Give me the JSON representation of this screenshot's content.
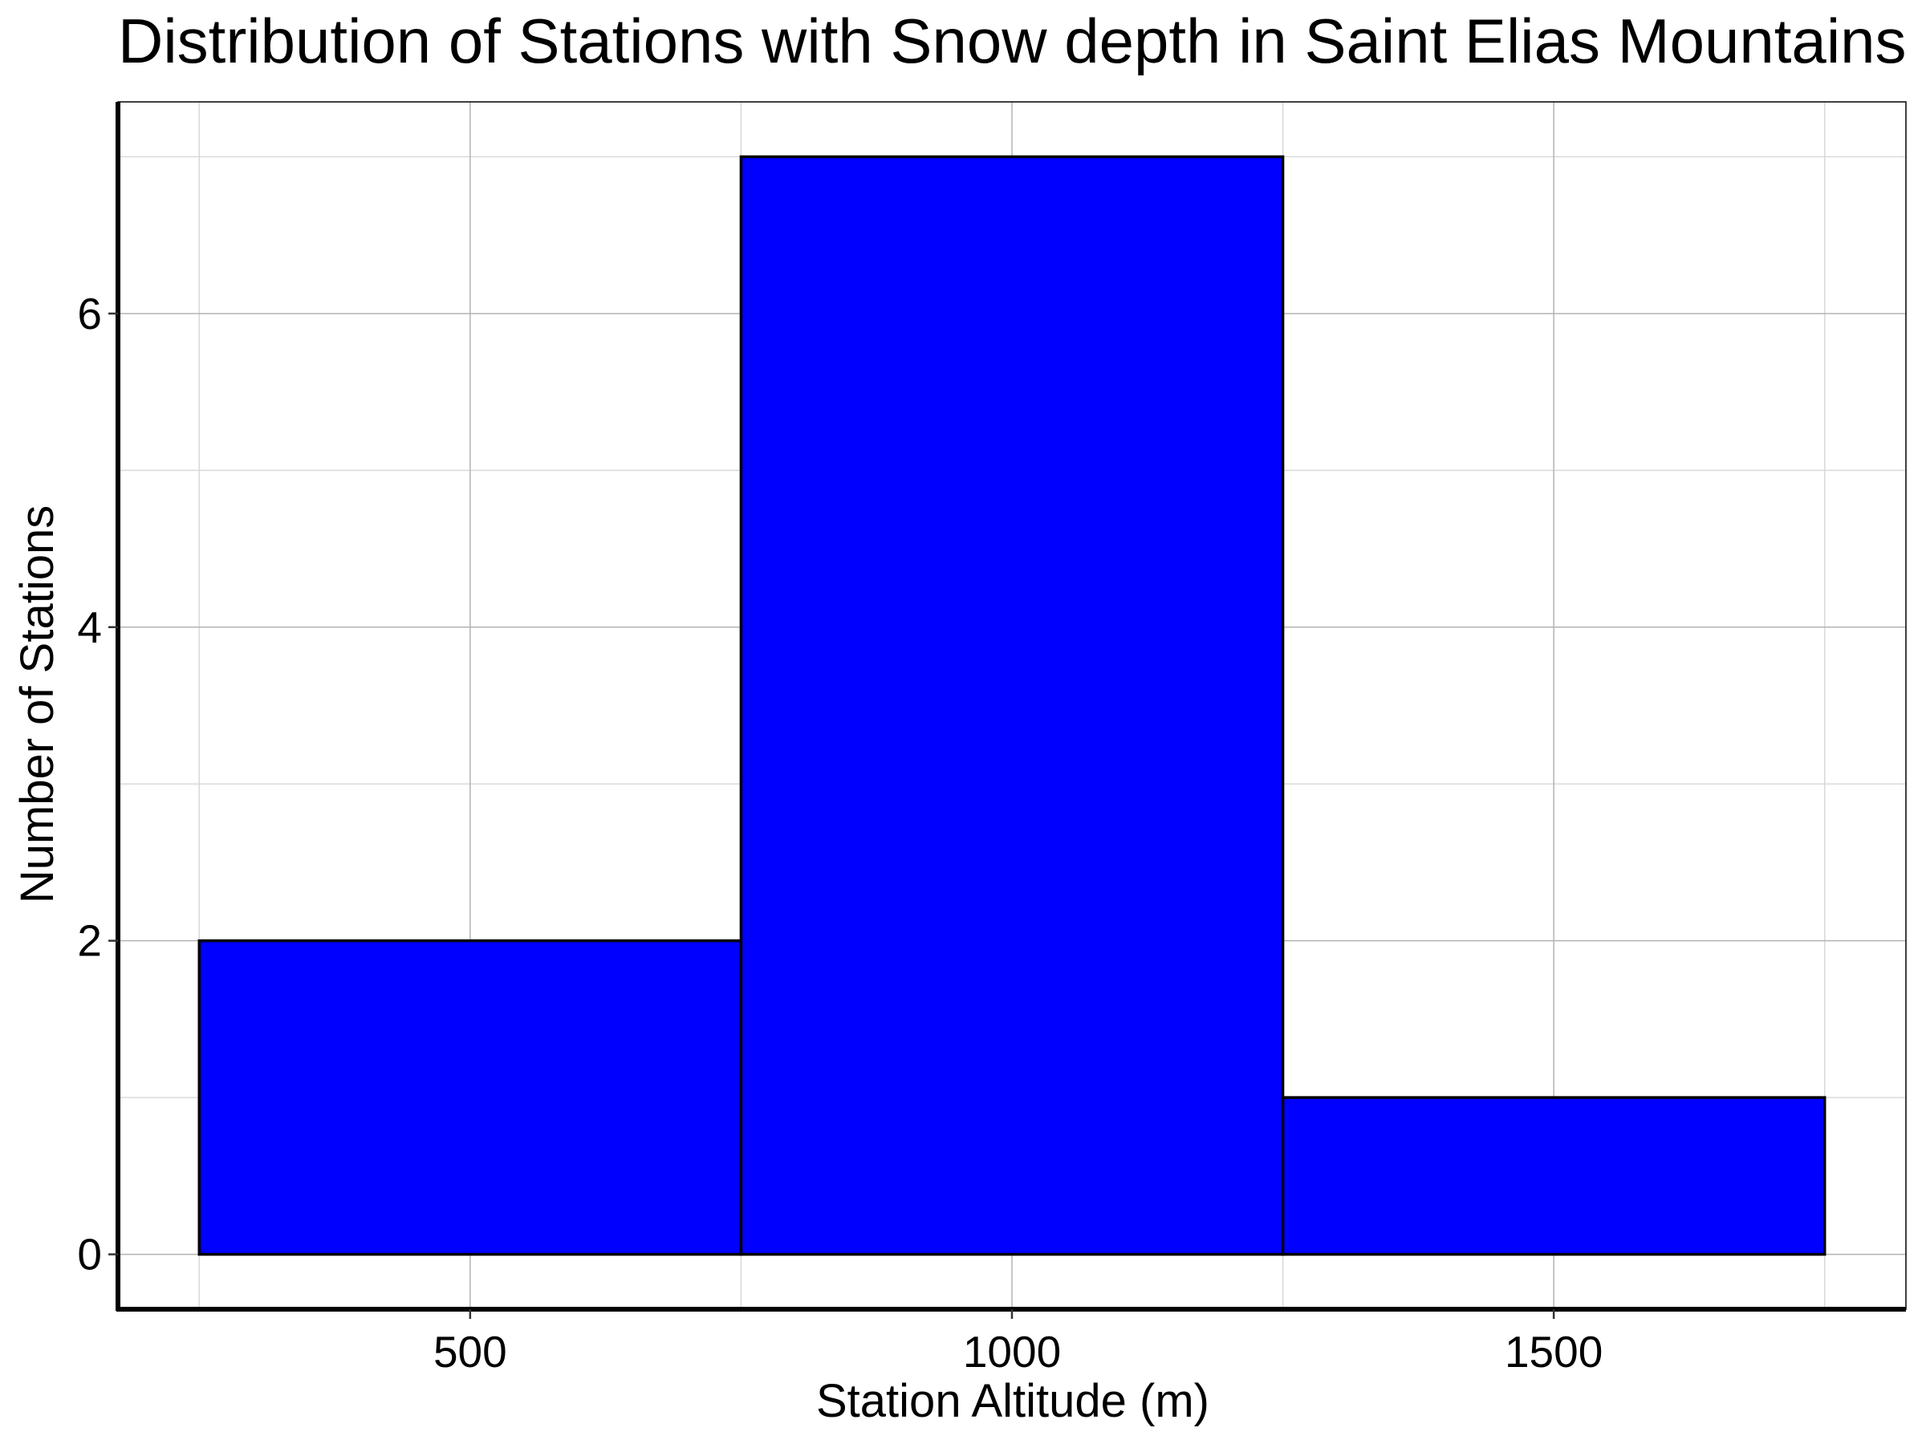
{
  "chart_data": {
    "type": "bar",
    "title": "Distribution of Stations with Snow depth in Saint Elias Mountains",
    "xlabel": "Station Altitude (m)",
    "ylabel": "Number of Stations",
    "bins": [
      {
        "x_start": 250,
        "x_end": 750,
        "count": 2
      },
      {
        "x_start": 750,
        "x_end": 1250,
        "count": 7
      },
      {
        "x_start": 1250,
        "x_end": 1750,
        "count": 1
      }
    ],
    "xlim": [
      175,
      1825
    ],
    "ylim": [
      -0.35,
      7.35
    ],
    "x_ticks": [
      500,
      1000,
      1500
    ],
    "x_tick_labels": [
      "500",
      "1000",
      "1500"
    ],
    "y_ticks": [
      0,
      2,
      4,
      6
    ],
    "y_tick_labels": [
      "0",
      "2",
      "4",
      "6"
    ],
    "x_minor_grid": [
      250,
      750,
      1250,
      1750
    ],
    "y_minor_grid": [
      1,
      3,
      5,
      7
    ],
    "grid": true,
    "bar_color": "#0000ff",
    "edge_color": "#000000"
  }
}
